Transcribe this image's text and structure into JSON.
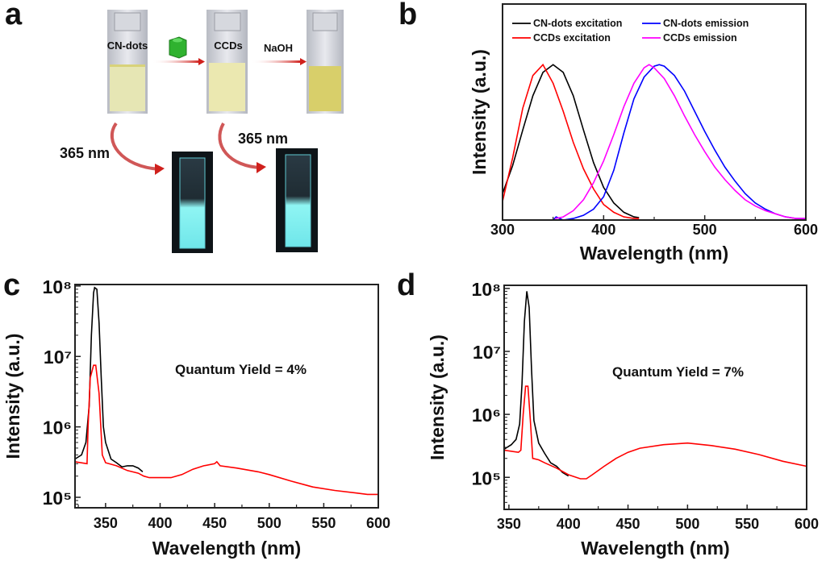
{
  "panel_letters": {
    "a": "a",
    "b": "b",
    "c": "c",
    "d": "d"
  },
  "panel_a": {
    "vial_labels": [
      "CN-dots",
      "CCDs"
    ],
    "reagent_label": "NaOH",
    "uv_labels": [
      "365 nm",
      "365 nm"
    ],
    "colors": {
      "vial_liquid_1": "#e6e6b4",
      "vial_liquid_2": "#ebe8b0",
      "vial_liquid_3": "#d8cf6a",
      "arrow": "#d0201c",
      "fluorescence": "#7ef2f0",
      "cyclodextrin": "#2fb22f"
    }
  },
  "chart_data": [
    {
      "id": "b",
      "type": "line",
      "xlabel": "Wavelength (nm)",
      "ylabel": "Intensity (a.u.)",
      "xlim": [
        300,
        600
      ],
      "ylim": [
        0,
        1.39
      ],
      "yscale": "linear",
      "xticks": [
        300,
        400,
        500,
        600
      ],
      "xtick_labels": [
        "300",
        "400",
        "500",
        "600"
      ],
      "xminor": [
        350,
        450,
        550
      ],
      "legend_position": "top",
      "grid": false,
      "series": [
        {
          "name": "CN-dots excitation",
          "color": "#000000",
          "x": [
            300,
            310,
            320,
            330,
            340,
            350,
            360,
            370,
            380,
            390,
            400,
            410,
            420,
            430,
            435
          ],
          "y": [
            0.17,
            0.35,
            0.58,
            0.8,
            0.95,
            1.0,
            0.95,
            0.8,
            0.58,
            0.37,
            0.21,
            0.11,
            0.05,
            0.02,
            0.015
          ]
        },
        {
          "name": "CCDs excitation",
          "color": "#ff0000",
          "x": [
            300,
            310,
            320,
            330,
            340,
            350,
            360,
            370,
            380,
            390,
            400,
            410,
            420,
            430,
            435
          ],
          "y": [
            0.12,
            0.4,
            0.72,
            0.93,
            1.0,
            0.88,
            0.7,
            0.5,
            0.33,
            0.2,
            0.1,
            0.05,
            0.02,
            0.01,
            0.01
          ]
        },
        {
          "name": "CN-dots emission",
          "color": "#0000ff",
          "x": [
            350,
            353,
            360,
            370,
            380,
            390,
            400,
            410,
            420,
            430,
            440,
            450,
            455,
            460,
            470,
            480,
            490,
            500,
            510,
            520,
            530,
            540,
            550,
            560,
            570,
            580,
            590,
            600
          ],
          "y": [
            0.0,
            0.02,
            0.0,
            0.01,
            0.03,
            0.07,
            0.15,
            0.32,
            0.56,
            0.78,
            0.92,
            0.99,
            1.0,
            0.99,
            0.93,
            0.83,
            0.7,
            0.57,
            0.45,
            0.34,
            0.25,
            0.17,
            0.11,
            0.07,
            0.04,
            0.02,
            0.01,
            0.01
          ]
        },
        {
          "name": "CCDs emission",
          "color": "#ff00ff",
          "x": [
            352,
            360,
            370,
            380,
            390,
            400,
            410,
            420,
            430,
            440,
            445,
            450,
            460,
            470,
            480,
            490,
            500,
            510,
            520,
            530,
            540,
            550,
            560,
            570,
            580,
            590,
            600
          ],
          "y": [
            0.01,
            0.02,
            0.06,
            0.13,
            0.24,
            0.38,
            0.55,
            0.73,
            0.88,
            0.98,
            1.0,
            0.98,
            0.91,
            0.8,
            0.67,
            0.55,
            0.44,
            0.34,
            0.26,
            0.19,
            0.13,
            0.09,
            0.06,
            0.04,
            0.02,
            0.01,
            0.01
          ]
        }
      ]
    },
    {
      "id": "c",
      "type": "line",
      "xlabel": "Wavelength (nm)",
      "ylabel": "Intensity (a.u.)",
      "xlim": [
        322,
        600
      ],
      "ylim": [
        71000,
        105000000
      ],
      "yscale": "log",
      "xticks": [
        350,
        400,
        450,
        500,
        550,
        600
      ],
      "xtick_labels": [
        "350",
        "400",
        "450",
        "500",
        "550",
        "600"
      ],
      "yticks": [
        100000,
        1000000,
        10000000,
        100000000
      ],
      "ytick_labels": [
        "10⁵",
        "10⁶",
        "10⁷",
        "10⁸"
      ],
      "annotation": "Quantum Yield = 4%",
      "grid": false,
      "series": [
        {
          "color": "#000000",
          "x": [
            322,
            328,
            332,
            335,
            337,
            339,
            340,
            342,
            344,
            346,
            348,
            350,
            355,
            360,
            365,
            370,
            375,
            380,
            384
          ],
          "y": [
            350000,
            400000,
            600000,
            2000000,
            20000000,
            80000000,
            95000000,
            90000000,
            30000000,
            5000000,
            1000000,
            600000,
            350000,
            310000,
            270000,
            280000,
            280000,
            260000,
            230000
          ]
        },
        {
          "color": "#ff0000",
          "x": [
            322,
            333,
            334,
            336,
            339,
            341,
            344,
            347,
            350,
            360,
            370,
            380,
            385,
            390,
            400,
            410,
            420,
            430,
            440,
            450,
            452,
            455,
            470,
            490,
            500,
            520,
            540,
            560,
            580,
            590,
            600
          ],
          "y": [
            320000,
            300000,
            1000000,
            5000000,
            7500000,
            7500000,
            3000000,
            400000,
            310000,
            280000,
            240000,
            220000,
            200000,
            190000,
            190000,
            190000,
            210000,
            250000,
            280000,
            300000,
            320000,
            280000,
            260000,
            230000,
            210000,
            170000,
            140000,
            125000,
            115000,
            110000,
            110000
          ]
        }
      ]
    },
    {
      "id": "d",
      "type": "line",
      "xlabel": "Wavelength (nm)",
      "ylabel": "Intensity (a.u.)",
      "xlim": [
        346,
        600
      ],
      "ylim": [
        31000,
        112000000
      ],
      "yscale": "log",
      "xticks": [
        350,
        400,
        450,
        500,
        550,
        600
      ],
      "xtick_labels": [
        "350",
        "400",
        "450",
        "500",
        "550",
        "600"
      ],
      "yticks": [
        100000,
        1000000,
        10000000,
        100000000
      ],
      "ytick_labels": [
        "10⁵",
        "10⁶",
        "10⁷",
        "10⁸"
      ],
      "annotation": "Quantum Yield = 7%",
      "grid": false,
      "series": [
        {
          "color": "#000000",
          "x": [
            346,
            352,
            356,
            359,
            361,
            363,
            365,
            367,
            369,
            371,
            375,
            380,
            385,
            390,
            395,
            400
          ],
          "y": [
            280000,
            330000,
            400000,
            700000,
            3000000,
            30000000,
            90000000,
            50000000,
            5000000,
            800000,
            350000,
            240000,
            170000,
            150000,
            120000,
            105000
          ]
        },
        {
          "color": "#ff0000",
          "x": [
            346,
            358,
            360,
            362,
            364,
            366,
            368,
            370,
            375,
            380,
            390,
            400,
            410,
            415,
            420,
            430,
            440,
            450,
            460,
            480,
            500,
            520,
            540,
            560,
            580,
            600
          ],
          "y": [
            270000,
            250000,
            270000,
            1000000,
            2800000,
            2800000,
            800000,
            200000,
            190000,
            170000,
            140000,
            110000,
            95000,
            95000,
            110000,
            150000,
            200000,
            250000,
            290000,
            330000,
            350000,
            320000,
            280000,
            230000,
            180000,
            150000
          ]
        }
      ]
    }
  ]
}
